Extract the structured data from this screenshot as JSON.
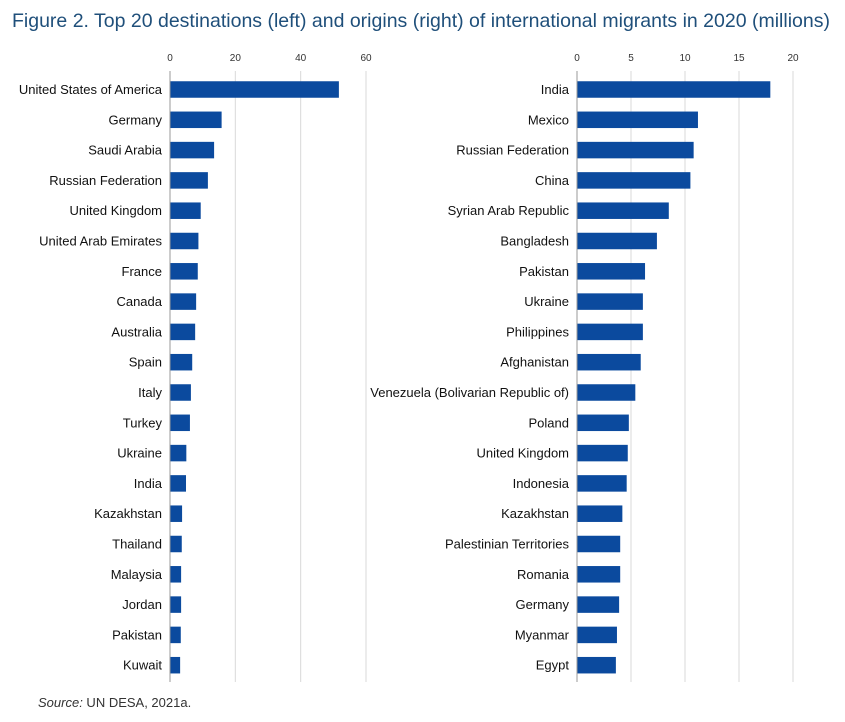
{
  "title": "Figure 2. Top 20 destinations (left) and origins (right) of international migrants in 2020 (millions)",
  "source_label": "Source:",
  "source_text": " UN DESA, 2021a.",
  "colors": {
    "bar": "#0b4a9e",
    "grid": "#d9d9d9",
    "axis": "#999999",
    "title": "#1f4f7a"
  },
  "chart_data": [
    {
      "type": "bar",
      "orientation": "horizontal",
      "title": "Top 20 destinations",
      "xlim": [
        0,
        60
      ],
      "xticks": [
        0,
        20,
        40,
        60
      ],
      "categories": [
        "United States of America",
        "Germany",
        "Saudi Arabia",
        "Russian Federation",
        "United Kingdom",
        "United Arab Emirates",
        "France",
        "Canada",
        "Australia",
        "Spain",
        "Italy",
        "Turkey",
        "Ukraine",
        "India",
        "Kazakhstan",
        "Thailand",
        "Malaysia",
        "Jordan",
        "Pakistan",
        "Kuwait"
      ],
      "values": [
        51.7,
        15.8,
        13.5,
        11.6,
        9.4,
        8.7,
        8.5,
        8.0,
        7.7,
        6.8,
        6.4,
        6.1,
        5.0,
        4.9,
        3.7,
        3.6,
        3.4,
        3.4,
        3.3,
        3.1
      ]
    },
    {
      "type": "bar",
      "orientation": "horizontal",
      "title": "Top 20 origins",
      "xlim": [
        0,
        20
      ],
      "xticks": [
        0,
        5,
        10,
        15,
        20
      ],
      "categories": [
        "India",
        "Mexico",
        "Russian Federation",
        "China",
        "Syrian Arab Republic",
        "Bangladesh",
        "Pakistan",
        "Ukraine",
        "Philippines",
        "Afghanistan",
        "Venezuela (Bolivarian Republic of)",
        "Poland",
        "United Kingdom",
        "Indonesia",
        "Kazakhstan",
        "Palestinian Territories",
        "Romania",
        "Germany",
        "Myanmar",
        "Egypt"
      ],
      "values": [
        17.9,
        11.2,
        10.8,
        10.5,
        8.5,
        7.4,
        6.3,
        6.1,
        6.1,
        5.9,
        5.4,
        4.8,
        4.7,
        4.6,
        4.2,
        4.0,
        4.0,
        3.9,
        3.7,
        3.6
      ]
    }
  ]
}
